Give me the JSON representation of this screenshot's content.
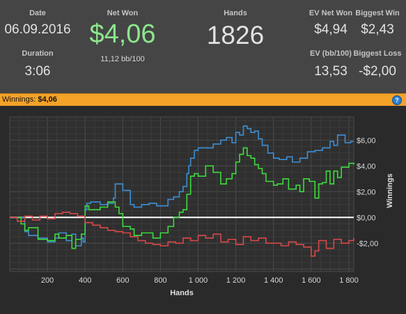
{
  "stats": {
    "date_label": "Date",
    "date_value": "06.09.2016",
    "duration_label": "Duration",
    "duration_value": "3:06",
    "netwon_label": "Net Won",
    "netwon_value": "$4,06",
    "netwon_sub": "11,12 bb/100",
    "hands_label": "Hands",
    "hands_value": "1826",
    "evnetwon_label": "EV Net Won",
    "evnetwon_value": "$4,94",
    "biggestwin_label": "Biggest Win",
    "biggestwin_value": "$2,43",
    "evbb_label": "EV (bb/100)",
    "evbb_value": "13,53",
    "biggestloss_label": "Biggest Loss",
    "biggestloss_value": "-$2,00"
  },
  "bar": {
    "label": "Winnings:",
    "value": "$4,06",
    "help": "?"
  },
  "colors": {
    "positive": "#8ce68c",
    "bar": "#f4a228",
    "blue_line": "#3d8fd6",
    "green_line": "#3ddc3d",
    "red_line": "#d94848",
    "zero_line": "#ffffff"
  },
  "chart_data": {
    "type": "line",
    "xlabel": "Hands",
    "ylabel": "Winnings",
    "xlim": [
      0,
      1826
    ],
    "ylim": [
      -4.2,
      7.8
    ],
    "xticks": [
      200,
      400,
      600,
      800,
      1000,
      1200,
      1400,
      1600,
      1800
    ],
    "xtick_labels": [
      "200",
      "400",
      "600",
      "800",
      "1 000",
      "1 200",
      "1 400",
      "1 600",
      "1 800"
    ],
    "yticks": [
      6,
      4,
      2,
      0,
      -2
    ],
    "ytick_labels": [
      "$6,00",
      "$4,00",
      "$2,00",
      "$0,00",
      "-$2,00"
    ],
    "grid": true,
    "series": [
      {
        "color": "#3d8fd6",
        "x": [
          0,
          60,
          80,
          100,
          150,
          200,
          240,
          260,
          300,
          330,
          350,
          380,
          390,
          400,
          410,
          430,
          480,
          520,
          550,
          560,
          600,
          640,
          660,
          700,
          740,
          780,
          840,
          870,
          900,
          920,
          940,
          950,
          960,
          980,
          1000,
          1040,
          1080,
          1120,
          1150,
          1180,
          1200,
          1220,
          1240,
          1260,
          1280,
          1300,
          1320,
          1340,
          1370,
          1400,
          1430,
          1470,
          1500,
          1540,
          1580,
          1620,
          1660,
          1700,
          1720,
          1740,
          1780,
          1810,
          1826
        ],
        "y": [
          0,
          0,
          -1.1,
          -1.4,
          -1.6,
          -1.9,
          -1.6,
          -1.2,
          -1.8,
          -1.3,
          -2.2,
          -1.6,
          -1.9,
          0.6,
          1.1,
          1.2,
          1.0,
          1.1,
          1.5,
          2.6,
          2.1,
          1.0,
          0.8,
          1.0,
          1.1,
          0.9,
          1.4,
          1.6,
          2.0,
          2.4,
          3.4,
          4.0,
          4.6,
          5.2,
          5.4,
          5.4,
          5.7,
          6.0,
          6.2,
          5.8,
          6.6,
          6.4,
          7.1,
          6.9,
          6.6,
          6.7,
          6.1,
          5.6,
          5.0,
          4.6,
          4.5,
          4.7,
          4.3,
          4.6,
          5.1,
          5.2,
          5.4,
          5.9,
          5.6,
          6.4,
          5.8,
          5.9,
          5.9
        ]
      },
      {
        "color": "#3ddc3d",
        "x": [
          0,
          40,
          60,
          80,
          100,
          150,
          200,
          240,
          260,
          300,
          330,
          350,
          380,
          400,
          420,
          480,
          520,
          560,
          580,
          600,
          640,
          660,
          700,
          760,
          800,
          840,
          870,
          900,
          920,
          940,
          960,
          980,
          1000,
          1040,
          1080,
          1120,
          1150,
          1180,
          1200,
          1220,
          1240,
          1260,
          1280,
          1300,
          1320,
          1340,
          1360,
          1400,
          1420,
          1450,
          1480,
          1520,
          1540,
          1560,
          1590,
          1620,
          1640,
          1660,
          1680,
          1700,
          1720,
          1740,
          1760,
          1800,
          1826
        ],
        "y": [
          0,
          0,
          -0.5,
          -1.0,
          -0.8,
          -1.7,
          -1.8,
          -1.3,
          -1.6,
          -1.4,
          -2.4,
          -1.7,
          -1.3,
          0.9,
          0.6,
          0.8,
          1.2,
          0.8,
          0.3,
          -0.7,
          -0.9,
          -1.4,
          -1.2,
          -1.6,
          -1.2,
          -0.7,
          0,
          0.4,
          0.6,
          1.8,
          3.2,
          3.4,
          3.2,
          4.0,
          3.5,
          2.6,
          3.0,
          3.4,
          4.3,
          4.9,
          5.4,
          4.8,
          4.6,
          4.1,
          3.8,
          3.4,
          2.8,
          2.5,
          2.6,
          3.0,
          2.2,
          2.5,
          2.0,
          3.0,
          2.8,
          1.5,
          2.6,
          2.7,
          3.6,
          2.6,
          3.6,
          3.1,
          3.9,
          4.2,
          4.1
        ]
      },
      {
        "color": "#d94848",
        "x": [
          0,
          40,
          80,
          120,
          160,
          200,
          240,
          280,
          320,
          360,
          400,
          440,
          480,
          520,
          560,
          600,
          640,
          680,
          720,
          760,
          800,
          840,
          880,
          920,
          960,
          1000,
          1040,
          1080,
          1120,
          1160,
          1200,
          1240,
          1280,
          1320,
          1360,
          1400,
          1440,
          1480,
          1520,
          1560,
          1600,
          1620,
          1640,
          1680,
          1720,
          1760,
          1800,
          1826
        ],
        "y": [
          0,
          -0.3,
          0.1,
          -0.2,
          0.1,
          -0.1,
          0.3,
          0.4,
          0.3,
          0.1,
          -0.4,
          -0.6,
          -0.8,
          -1.0,
          -1.1,
          -1.2,
          -1.5,
          -1.8,
          -2.0,
          -2.1,
          -2.2,
          -1.9,
          -2.0,
          -1.6,
          -1.8,
          -1.4,
          -1.6,
          -1.3,
          -1.9,
          -1.7,
          -2.1,
          -1.5,
          -1.8,
          -1.6,
          -2.0,
          -2.0,
          -2.2,
          -1.9,
          -2.1,
          -2.3,
          -3.0,
          -2.6,
          -1.8,
          -2.4,
          -1.7,
          -2.0,
          -1.8,
          -1.6
        ]
      }
    ]
  }
}
